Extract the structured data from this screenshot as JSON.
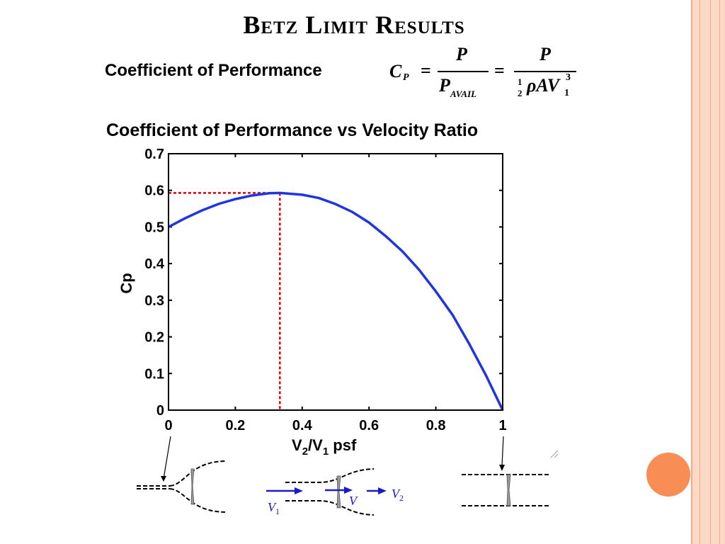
{
  "slide": {
    "title": "Betz Limit Results",
    "cop_label": "Coefficient of Performance",
    "chart_title": "Coefficient of Performance vs Velocity Ratio"
  },
  "equation": {
    "lhs": "C",
    "lhs_sub": "P",
    "num1": "P",
    "den1": "P",
    "den1_sub": "AVAIL",
    "num2": "P",
    "half_num": "1",
    "half_den": "2",
    "den2": "ρAV",
    "den2_sub": "1",
    "den2_sup": "3"
  },
  "chart_data": {
    "type": "line",
    "title": "Coefficient of Performance vs Velocity Ratio",
    "xlabel": "V2/V1 psf",
    "ylabel": "Cp",
    "xlim": [
      0,
      1
    ],
    "ylim": [
      0,
      0.7
    ],
    "x_ticks": [
      "0",
      "0.2",
      "0.4",
      "0.6",
      "0.8",
      "1"
    ],
    "y_ticks": [
      "0",
      "0.1",
      "0.2",
      "0.3",
      "0.4",
      "0.5",
      "0.6",
      "0.7"
    ],
    "series": [
      {
        "x": [
          0,
          0.05,
          0.1,
          0.15,
          0.2,
          0.25,
          0.3,
          0.3333,
          0.4,
          0.45,
          0.5,
          0.55,
          0.6,
          0.65,
          0.7,
          0.75,
          0.8,
          0.85,
          0.9,
          0.95,
          1.0
        ],
        "y": [
          0.5,
          0.524,
          0.545,
          0.563,
          0.576,
          0.586,
          0.592,
          0.593,
          0.588,
          0.579,
          0.5625,
          0.541,
          0.512,
          0.475,
          0.4335,
          0.383,
          0.324,
          0.26,
          0.1805,
          0.095,
          0.0
        ],
        "color": "#1f35e0"
      }
    ],
    "reference_point": {
      "x": 0.3333,
      "y": 0.593,
      "color": "#e00000"
    }
  },
  "diagram": {
    "v1_label": "V",
    "v1_sub": "1",
    "v_label": "V",
    "v2_label": "V",
    "v2_sub": "2"
  },
  "colors": {
    "curve": "#1f35e0",
    "reference": "#e00000",
    "accent": "#f88e55",
    "deco": "#fbd9c6"
  }
}
